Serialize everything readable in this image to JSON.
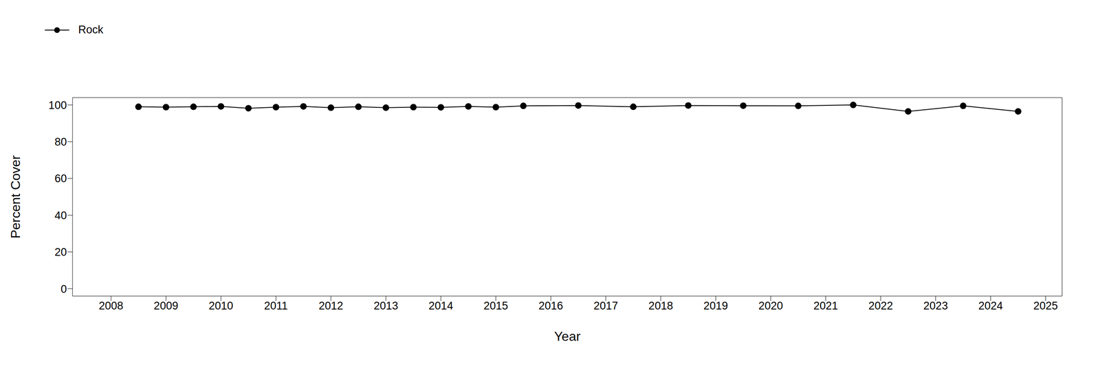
{
  "chart_data": {
    "type": "line",
    "x_label": "Year",
    "y_label": "Percent Cover",
    "x": [
      2008.5,
      2009.0,
      2009.5,
      2010.0,
      2010.5,
      2011.0,
      2011.5,
      2012.0,
      2012.5,
      2013.0,
      2013.5,
      2014.0,
      2014.5,
      2015.0,
      2015.5,
      2016.5,
      2017.5,
      2018.5,
      2019.5,
      2020.5,
      2021.5,
      2022.5,
      2023.5,
      2024.5
    ],
    "series": [
      {
        "name": "Rock",
        "color": "#000000",
        "marker": "circle",
        "line_style": "solid",
        "values": [
          99,
          98.8,
          99,
          99.2,
          98.2,
          98.8,
          99.2,
          98.5,
          99,
          98.5,
          98.8,
          98.7,
          99.2,
          98.8,
          99.5,
          99.7,
          99,
          99.7,
          99.6,
          99.5,
          100,
          96.5,
          99.5,
          96.5
        ]
      }
    ],
    "xlim": [
      2007.3,
      2025.3
    ],
    "xticks": [
      2008,
      2009,
      2010,
      2011,
      2012,
      2013,
      2014,
      2015,
      2016,
      2017,
      2018,
      2019,
      2020,
      2021,
      2022,
      2023,
      2024,
      2025
    ],
    "ylim": [
      -4,
      104
    ],
    "yticks": [
      0,
      20,
      40,
      60,
      80,
      100
    ],
    "grid": false,
    "legend": "top-left"
  }
}
